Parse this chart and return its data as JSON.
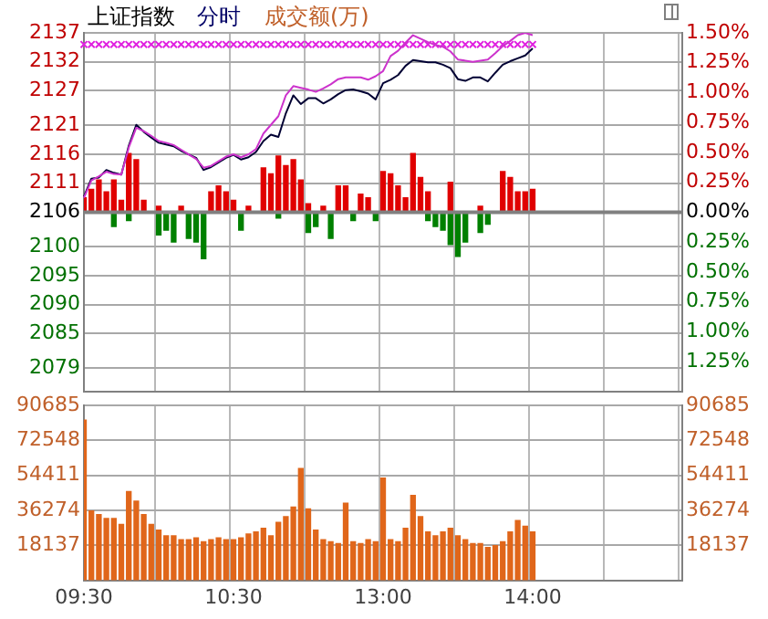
{
  "chart_data": [
    {
      "type": "line",
      "title": "上证指数",
      "subtitle": "分时",
      "annotations": [
        "成交额(万)"
      ],
      "categories": [
        null,
        null,
        null,
        null,
        null,
        null,
        null,
        null,
        null,
        null,
        null,
        null,
        null,
        null,
        null,
        null,
        null,
        null,
        null,
        null,
        null,
        null,
        null,
        null,
        null,
        null,
        null,
        null,
        null,
        null,
        null,
        null,
        null,
        null,
        null,
        null,
        null,
        null,
        null,
        null,
        null,
        null,
        null,
        null,
        null,
        null,
        null,
        null,
        null,
        null,
        null,
        null,
        null,
        null,
        null,
        null,
        null,
        null,
        null,
        null,
        null,
        null,
        null,
        null,
        null,
        null,
        null,
        null,
        null,
        null,
        null,
        null,
        null,
        null,
        null,
        null,
        null,
        null,
        null,
        null,
        null
      ],
      "ylim": [
        2075,
        2137
      ],
      "yticks": [
        2079,
        2085,
        2090,
        2095,
        2100,
        2106,
        2111,
        2116,
        2121,
        2127,
        2132,
        2137
      ],
      "y2lim": [
        -1.5,
        1.5
      ],
      "y2ticks": [
        {
          "value": -1.25,
          "label": "1.25%"
        },
        {
          "value": -1.0,
          "label": "1.00%"
        },
        {
          "value": -0.75,
          "label": "0.75%"
        },
        {
          "value": -0.5,
          "label": "0.50%"
        },
        {
          "value": -0.25,
          "label": "0.25%"
        },
        {
          "value": 0,
          "label": "0.00%"
        },
        {
          "value": 0.25,
          "label": "0.25%"
        },
        {
          "value": 0.5,
          "label": "0.50%"
        },
        {
          "value": 0.75,
          "label": "0.75%"
        },
        {
          "value": 1.0,
          "label": "1.00%"
        },
        {
          "value": 1.25,
          "label": "1.25%"
        },
        {
          "value": 1.5,
          "label": "1.50%"
        }
      ],
      "tick_labels": "y",
      "grid": true,
      "legend": false,
      "marker": "none",
      "line_style": "solid",
      "ref_lines": [
        {
          "axis": "y",
          "value": 2106,
          "color": "#808080"
        }
      ],
      "series": [
        {
          "type": "bar",
          "axis": "y2",
          "color": "#e00000",
          "values": [
            0.12,
            0.19,
            0.27,
            0.17,
            0.27,
            0.1,
            0.49,
            0.44,
            0.1,
            null,
            0.05,
            null,
            null,
            0.05,
            null,
            null,
            null,
            0.17,
            0.22,
            0.17,
            0.1,
            null,
            0.05,
            null,
            0.37,
            0.32,
            0.47,
            0.39,
            0.44,
            0.27,
            0.07,
            null,
            0.05,
            null,
            0.22,
            0.22,
            null,
            0.15,
            0.12,
            null,
            0.34,
            0.32,
            0.22,
            0.12,
            0.49,
            0.29,
            0.17,
            null,
            null,
            0.25,
            null,
            null,
            null,
            0.05,
            null,
            null,
            0.34,
            0.29,
            0.17,
            0.17,
            0.19,
            null,
            null,
            null,
            null,
            null,
            null,
            null,
            null,
            null,
            null,
            null,
            null,
            null,
            null,
            null,
            null,
            null,
            null,
            null,
            null
          ]
        },
        {
          "type": "bar",
          "axis": "y2",
          "color": "#008000",
          "values": [
            null,
            null,
            null,
            null,
            -0.12,
            null,
            -0.07,
            null,
            null,
            null,
            -0.19,
            -0.15,
            -0.25,
            null,
            -0.22,
            -0.25,
            -0.39,
            null,
            null,
            null,
            null,
            -0.15,
            null,
            null,
            null,
            null,
            -0.05,
            null,
            null,
            null,
            -0.17,
            -0.12,
            null,
            -0.22,
            null,
            null,
            -0.07,
            null,
            null,
            -0.07,
            null,
            null,
            null,
            null,
            null,
            null,
            -0.07,
            -0.12,
            -0.15,
            -0.27,
            -0.37,
            -0.25,
            null,
            -0.17,
            -0.1,
            null,
            null,
            null,
            null,
            null,
            null,
            null,
            null,
            null,
            null,
            null,
            null,
            null,
            null,
            null,
            null,
            null,
            null,
            null,
            null,
            null,
            null,
            null,
            null,
            null,
            null
          ]
        },
        {
          "type": "scatter",
          "marker": "cross",
          "color": "#e020e0",
          "values": [
            2135,
            2135,
            2135,
            2135,
            2135,
            2135,
            2135,
            2135,
            2135,
            2135,
            2135,
            2135,
            2135,
            2135,
            2135,
            2135,
            2135,
            2135,
            2135,
            2135,
            2135,
            2135,
            2135,
            2135,
            2135,
            2135,
            2135,
            2135,
            2135,
            2135,
            2135,
            2135,
            2135,
            2135,
            2135,
            2135,
            2135,
            2135,
            2135,
            2135,
            2135,
            2135,
            2135,
            2135,
            2135,
            2135,
            2135,
            2135,
            2135,
            2135,
            2135,
            2135,
            2135,
            2135,
            2135,
            2135,
            2135,
            2135,
            2135,
            2135,
            2135,
            null,
            null,
            null,
            null,
            null,
            null,
            null,
            null,
            null,
            null,
            null,
            null,
            null,
            null,
            null,
            null,
            null,
            null,
            null,
            null
          ]
        },
        {
          "color": "#cc33cc",
          "values": [
            2108.5,
            2111.5,
            2112.2,
            2113.0,
            2112.6,
            2112.5,
            2117.2,
            2120.6,
            2120.0,
            2119.2,
            2118.3,
            2118.0,
            2117.6,
            2116.8,
            2116.0,
            2115.2,
            2113.7,
            2114.0,
            2114.8,
            2115.6,
            2116.0,
            2115.5,
            2116.0,
            2116.9,
            2119.6,
            2121.1,
            2122.6,
            2126.2,
            2127.8,
            2127.5,
            2127.2,
            2126.8,
            2127.4,
            2128.1,
            2129.0,
            2129.3,
            2129.3,
            2129.3,
            2128.9,
            2129.5,
            2130.4,
            2133.0,
            2133.9,
            2135.3,
            2136.6,
            2136.0,
            2135.4,
            2134.9,
            2134.6,
            2133.8,
            2132.4,
            2132.2,
            2132.0,
            2132.2,
            2132.4,
            2133.5,
            2134.7,
            2135.6,
            2136.6,
            2137.0,
            2136.6,
            null,
            null,
            null,
            null,
            null,
            null,
            null,
            null,
            null,
            null,
            null,
            null,
            null,
            null,
            null,
            null,
            null,
            null,
            null,
            null
          ]
        },
        {
          "color": "#000033",
          "values": [
            2108.7,
            2111.8,
            2112.0,
            2113.3,
            2112.8,
            2112.5,
            2117.5,
            2121.1,
            2119.9,
            2118.9,
            2118.0,
            2117.7,
            2117.4,
            2116.6,
            2116.0,
            2115.4,
            2113.3,
            2113.8,
            2114.6,
            2115.4,
            2115.9,
            2115.1,
            2115.5,
            2116.4,
            2118.3,
            2119.4,
            2119.0,
            2123.1,
            2126.2,
            2124.7,
            2125.7,
            2125.7,
            2124.8,
            2125.5,
            2126.4,
            2127.1,
            2127.2,
            2126.9,
            2126.5,
            2125.5,
            2128.3,
            2128.9,
            2129.7,
            2131.3,
            2132.3,
            2132.1,
            2131.9,
            2131.9,
            2131.5,
            2130.9,
            2129.0,
            2128.7,
            2129.3,
            2129.3,
            2128.6,
            2130.1,
            2131.5,
            2132.1,
            2132.6,
            2133.1,
            2134.3,
            null,
            null,
            null,
            null,
            null,
            null,
            null,
            null,
            null,
            null,
            null,
            null,
            null,
            null,
            null,
            null,
            null,
            null,
            null,
            null
          ]
        }
      ]
    },
    {
      "type": "bar",
      "categories": [
        "09:30",
        null,
        null,
        null,
        null,
        null,
        null,
        null,
        null,
        null,
        null,
        null,
        null,
        null,
        null,
        null,
        null,
        null,
        null,
        null,
        "10:30",
        null,
        null,
        null,
        null,
        null,
        null,
        null,
        null,
        null,
        null,
        null,
        null,
        null,
        null,
        null,
        null,
        null,
        null,
        null,
        "13:00",
        null,
        null,
        null,
        null,
        null,
        null,
        null,
        null,
        null,
        null,
        null,
        null,
        null,
        null,
        null,
        null,
        null,
        null,
        null,
        "14:00",
        null,
        null,
        null,
        null,
        null,
        null,
        null,
        null,
        null,
        null,
        null,
        null,
        null,
        null,
        null,
        null,
        null,
        null,
        null,
        null
      ],
      "ylim": [
        0,
        90685
      ],
      "yticks": [
        18137,
        36274,
        54411,
        72548,
        90685
      ],
      "y2lim": [
        0,
        90685
      ],
      "y2ticks": [
        18137,
        36274,
        54411,
        72548,
        90685
      ],
      "grid": true,
      "legend": false,
      "series": [
        {
          "color": "#e0661a",
          "values": [
            83000,
            36000,
            34000,
            32000,
            32000,
            29000,
            46000,
            41000,
            34000,
            29000,
            26000,
            23000,
            23000,
            21000,
            21000,
            22000,
            20000,
            21000,
            22000,
            21000,
            21000,
            22000,
            24000,
            25000,
            27000,
            23000,
            30000,
            33000,
            38000,
            58000,
            37000,
            26000,
            21000,
            20000,
            19000,
            40000,
            20000,
            19000,
            21000,
            20000,
            53000,
            21000,
            20000,
            27000,
            44000,
            33000,
            25000,
            23000,
            25000,
            27000,
            23000,
            21000,
            19000,
            19000,
            17000,
            18000,
            20000,
            25000,
            31000,
            28000,
            25000,
            null,
            null,
            null,
            null,
            null,
            null,
            null,
            null,
            null,
            null,
            null,
            null,
            null,
            null,
            null,
            null,
            null,
            null,
            null,
            null
          ]
        }
      ]
    }
  ]
}
